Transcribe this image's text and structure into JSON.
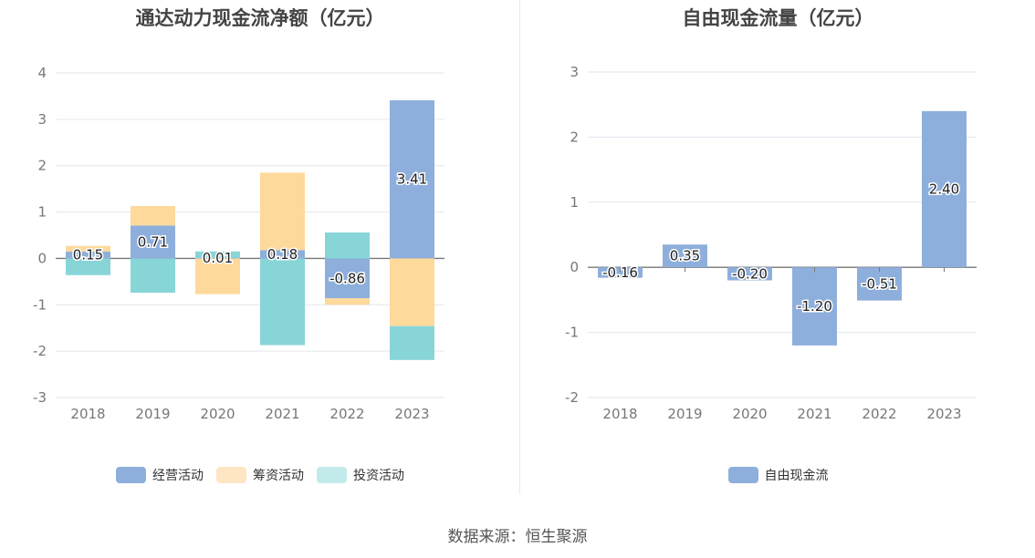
{
  "source_text": "数据来源：恒生聚源",
  "chart_data": [
    {
      "type": "bar",
      "stacked": true,
      "title": "通达动力现金流净额（亿元）",
      "categories": [
        "2018",
        "2019",
        "2020",
        "2021",
        "2022",
        "2023"
      ],
      "series": [
        {
          "name": "经营活动",
          "color": "#8eafdc",
          "values": [
            0.15,
            0.71,
            0.01,
            0.18,
            -0.86,
            3.41
          ]
        },
        {
          "name": "筹资活动",
          "color": "#fed99c",
          "values": [
            0.12,
            0.42,
            -0.77,
            1.67,
            -0.14,
            -1.46
          ]
        },
        {
          "name": "投资活动",
          "color": "#88d5d8",
          "values": [
            -0.36,
            -0.74,
            0.14,
            -1.87,
            0.56,
            -0.73
          ]
        }
      ],
      "value_labels": [
        "0.15",
        "0.71",
        "0.01",
        "0.18",
        "-0.86",
        "3.41"
      ],
      "legend_swatch_colors": [
        "#8eafdc",
        "#fee6c3",
        "#c3eaeb"
      ],
      "ylim": [
        -3,
        4
      ],
      "yticks": [
        -3,
        -2,
        -1,
        0,
        1,
        2,
        3,
        4
      ],
      "grid": true,
      "legend": "bottom"
    },
    {
      "type": "bar",
      "title": "自由现金流量（亿元）",
      "categories": [
        "2018",
        "2019",
        "2020",
        "2021",
        "2022",
        "2023"
      ],
      "series": [
        {
          "name": "自由现金流",
          "color": "#8eafdc",
          "values": [
            -0.16,
            0.35,
            -0.2,
            -1.2,
            -0.51,
            2.4
          ]
        }
      ],
      "value_labels": [
        "-0.16",
        "0.35",
        "-0.20",
        "-1.20",
        "-0.51",
        "2.40"
      ],
      "ylim": [
        -2,
        3
      ],
      "yticks": [
        -2,
        -1,
        0,
        1,
        2,
        3
      ],
      "grid": true,
      "legend": "bottom"
    }
  ]
}
